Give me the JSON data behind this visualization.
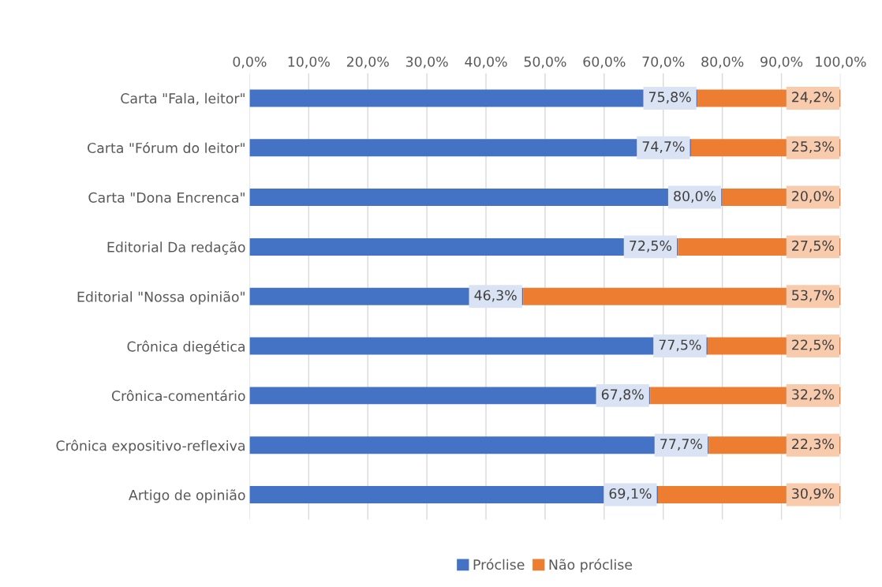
{
  "chart_data": {
    "type": "bar",
    "orientation": "horizontal",
    "stacked": true,
    "categories": [
      "Carta \"Fala, leitor\"",
      "Carta \"Fórum do leitor\"",
      "Carta \"Dona Encrenca\"",
      "Editorial Da redação",
      "Editorial \"Nossa opinião\"",
      "Crônica diegética",
      "Crônica-comentário",
      "Crônica expositivo-reflexiva",
      "Artigo de opinião"
    ],
    "series": [
      {
        "name": "Próclise",
        "color": "#4472c4",
        "values": [
          75.8,
          74.7,
          80.0,
          72.5,
          46.3,
          77.5,
          67.8,
          77.7,
          69.1
        ],
        "value_labels": [
          "75,8%",
          "74,7%",
          "80,0%",
          "72,5%",
          "46,3%",
          "77,5%",
          "67,8%",
          "77,7%",
          "69,1%"
        ]
      },
      {
        "name": "Não próclise",
        "color": "#ed7d31",
        "values": [
          24.2,
          25.3,
          20.0,
          27.5,
          53.7,
          22.5,
          32.2,
          22.3,
          30.9
        ],
        "value_labels": [
          "24,2%",
          "25,3%",
          "20,0%",
          "27,5%",
          "53,7%",
          "22,5%",
          "32,2%",
          "22,3%",
          "30,9%"
        ]
      }
    ],
    "xlim": [
      0,
      100
    ],
    "xticks": [
      {
        "value": 0,
        "label": "0,0%"
      },
      {
        "value": 10,
        "label": "10,0%"
      },
      {
        "value": 20,
        "label": "20,0%"
      },
      {
        "value": 30,
        "label": "30,0%"
      },
      {
        "value": 40,
        "label": "40,0%"
      },
      {
        "value": 50,
        "label": "50,0%"
      },
      {
        "value": 60,
        "label": "60,0%"
      },
      {
        "value": 70,
        "label": "70,0%"
      },
      {
        "value": 80,
        "label": "80,0%"
      },
      {
        "value": 90,
        "label": "90,0%"
      },
      {
        "value": 100,
        "label": "100,0%"
      }
    ],
    "grid": "x",
    "legend": "bottom"
  }
}
